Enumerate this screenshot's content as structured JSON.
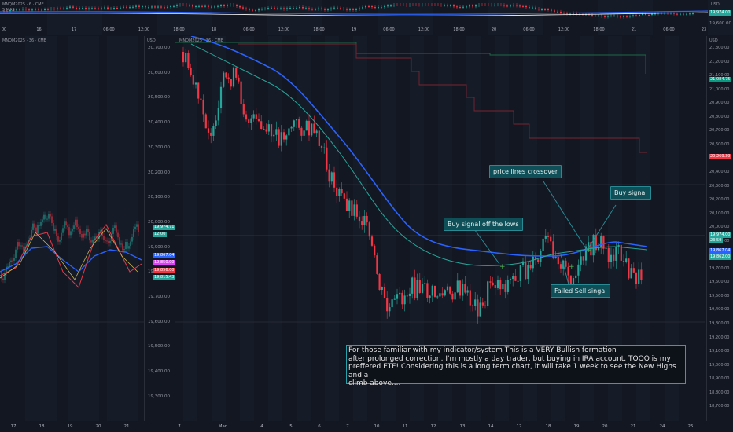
{
  "top_chart": {
    "symbol_label": "MNQM2025 · 6 · CME",
    "sub_label": "5 MAS",
    "price_currency": "USD",
    "price_badge": "19,974.00",
    "price_level": "19,600.00",
    "x_ticks": [
      "00",
      "16",
      "17",
      "06:00",
      "12:00",
      "18:00",
      "18",
      "06:00",
      "12:00",
      "18:00",
      "19",
      "06:00",
      "12:00",
      "18:00",
      "20",
      "06:00",
      "12:00",
      "18:00",
      "21",
      "06:00",
      "23"
    ]
  },
  "left_chart": {
    "symbol_label": "MNQM2025 · 36 · CME",
    "x_ticks": [
      "17",
      "18",
      "19",
      "20",
      "21"
    ]
  },
  "mid_axis": {
    "currency": "USD",
    "ticks": [
      "20,700.00",
      "20,600.00",
      "20,500.00",
      "20,400.00",
      "20,300.00",
      "20,200.00",
      "20,100.00",
      "20,000.00",
      "19,900.00",
      "19,800.00",
      "19,700.00",
      "19,600.00",
      "19,500.00",
      "19,400.00",
      "19,300.00"
    ],
    "badges": [
      {
        "text": "19,974.71",
        "color": "#26a69a"
      },
      {
        "text": "12:00",
        "color": "#26a69a"
      },
      {
        "text": "19,867.04",
        "color": "#2962ff"
      },
      {
        "text": "19,850.00",
        "color": "#e040fb"
      },
      {
        "text": "19,856.00",
        "color": "#f23645"
      },
      {
        "text": "19,815.43",
        "color": "#26a69a"
      }
    ]
  },
  "main_chart": {
    "symbol_label": "MNQM2025 · 36 · CME",
    "currency": "USD",
    "y_ticks": [
      "21,300.00",
      "21,200.00",
      "21,100.00",
      "21,000.00",
      "20,900.00",
      "20,800.00",
      "20,700.00",
      "20,600.00",
      "20,500.00",
      "20,400.00",
      "20,300.00",
      "20,200.00",
      "20,100.00",
      "20,000.00",
      "19,900.00",
      "19,800.00",
      "19,700.00",
      "19,600.00",
      "19,500.00",
      "19,400.00",
      "19,300.00",
      "19,200.00",
      "19,100.00",
      "19,000.00",
      "18,900.00",
      "18,800.00",
      "18,700.00"
    ],
    "x_ticks": [
      "7",
      "Mar",
      "4",
      "5",
      "6",
      "7",
      "10",
      "11",
      "12",
      "13",
      "14",
      "17",
      "18",
      "19",
      "20",
      "21",
      "24",
      "25"
    ],
    "badges": [
      {
        "text": "21,084.75",
        "color": "#089981"
      },
      {
        "text": "20,269.39",
        "color": "#f23645"
      },
      {
        "text": "19,974.00",
        "color": "#26a69a"
      },
      {
        "text": "23:59",
        "color": "#26a69a"
      },
      {
        "text": "19,867.04",
        "color": "#2962ff"
      },
      {
        "text": "19,862.00",
        "color": "#26a69a"
      }
    ],
    "callouts": {
      "buy_lows": "Buy signal off the lows",
      "crossover": "price lines crossover",
      "buy_signal": "Buy signal",
      "failed_sell": "Failed Sell singal"
    },
    "note_lines": [
      "For those familiar with my indicator/system  This is a VERY Bullish formation",
      "after prolonged correction.  I'm mostly a day trader, but buying in IRA account.  TQQQ is my",
      "preffered ETF!  Considering this is a long term chart, it will take 1 week to see the New Highs and a",
      "climb above...."
    ]
  },
  "colors": {
    "background": "#131722",
    "up": "#26a69a",
    "down": "#f23645",
    "ma_blue": "#2962ff",
    "ma_teal": "#26a69a",
    "callout_bg": "#0e4f58",
    "note_border": "#26a3ad"
  }
}
